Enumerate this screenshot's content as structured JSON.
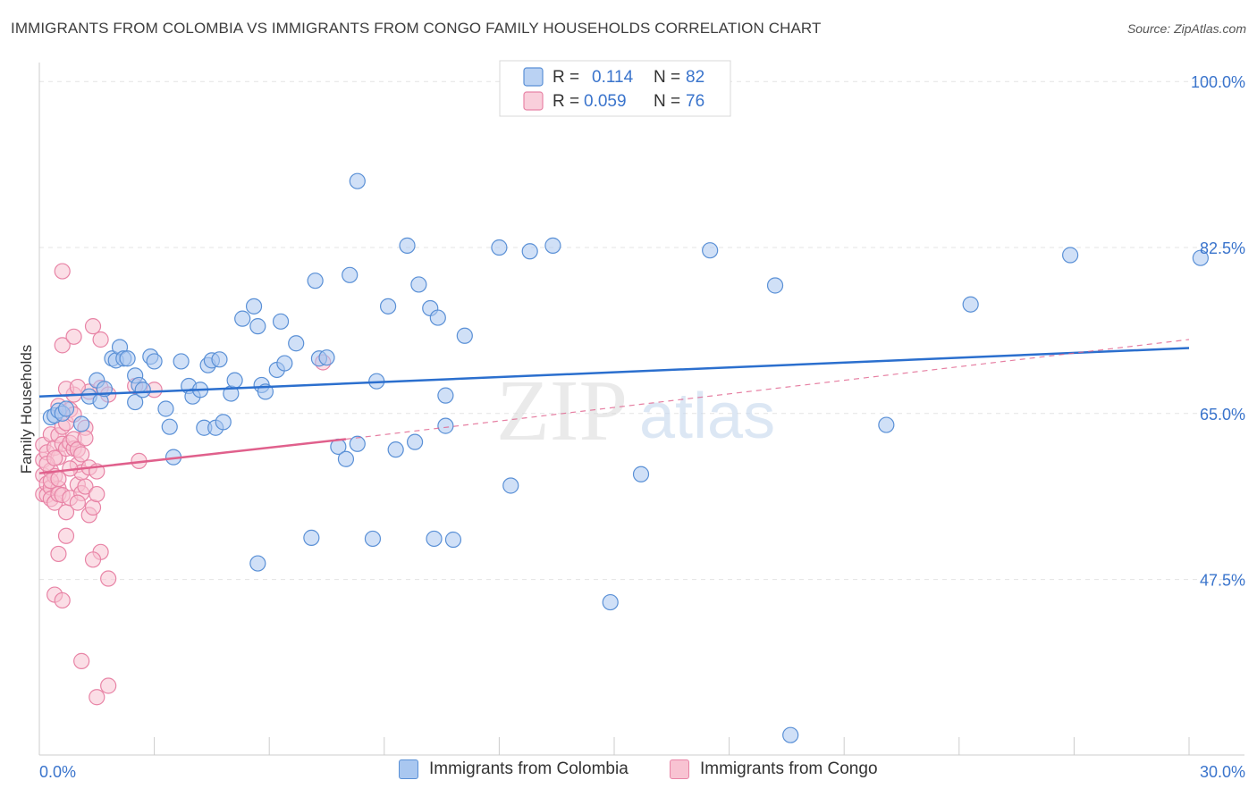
{
  "title": "IMMIGRANTS FROM COLOMBIA VS IMMIGRANTS FROM CONGO FAMILY HOUSEHOLDS CORRELATION CHART",
  "source": "Source: ZipAtlas.com",
  "watermark": {
    "zip": "ZIP",
    "atlas": "atlas"
  },
  "legend": {
    "rows": [
      {
        "r_label": "R =",
        "r_value": "0.114",
        "n_label": "N =",
        "n_value": "82"
      },
      {
        "r_label": "R =",
        "r_value": "0.059",
        "n_label": "N =",
        "n_value": "76"
      }
    ]
  },
  "bottom_legend": [
    {
      "label": "Immigrants from Colombia"
    },
    {
      "label": "Immigrants from Congo"
    }
  ],
  "colors": {
    "colombia_fill": "#a9c7f0",
    "colombia_stroke": "#5a90d6",
    "colombia_line": "#2b6fce",
    "congo_fill": "#f8c3d2",
    "congo_stroke": "#e884a6",
    "congo_line": "#e0608c",
    "value_text": "#3a74cc",
    "grid": "#e4e4e4",
    "axis": "#cccccc"
  },
  "chart_data": {
    "type": "scatter",
    "xlabel": "",
    "ylabel": "Family Households",
    "xlim": [
      0,
      30
    ],
    "ylim": [
      29,
      102
    ],
    "x_tick_labels": [
      "0.0%",
      "30.0%"
    ],
    "y_ticks": [
      47.5,
      65.0,
      82.5,
      100.0
    ],
    "y_tick_labels": [
      "47.5%",
      "65.0%",
      "82.5%",
      "100.0%"
    ],
    "series": [
      {
        "name": "Immigrants from Colombia",
        "trend": {
          "x": [
            0,
            30
          ],
          "y": [
            66.8,
            71.9
          ]
        },
        "points": [
          [
            0.3,
            64.6
          ],
          [
            0.4,
            64.8
          ],
          [
            0.5,
            65.3
          ],
          [
            0.6,
            65.0
          ],
          [
            0.7,
            65.5
          ],
          [
            1.1,
            63.9
          ],
          [
            1.3,
            66.8
          ],
          [
            1.5,
            68.5
          ],
          [
            1.6,
            66.3
          ],
          [
            1.7,
            67.6
          ],
          [
            1.9,
            70.8
          ],
          [
            2.0,
            70.6
          ],
          [
            2.1,
            72.0
          ],
          [
            2.2,
            70.8
          ],
          [
            2.3,
            70.8
          ],
          [
            2.5,
            69.0
          ],
          [
            2.5,
            66.2
          ],
          [
            2.6,
            68.0
          ],
          [
            2.7,
            67.5
          ],
          [
            2.9,
            71.0
          ],
          [
            3.0,
            70.5
          ],
          [
            3.3,
            65.5
          ],
          [
            3.4,
            63.6
          ],
          [
            3.5,
            60.4
          ],
          [
            3.7,
            70.5
          ],
          [
            3.9,
            67.9
          ],
          [
            4.0,
            66.8
          ],
          [
            4.2,
            67.5
          ],
          [
            4.3,
            63.5
          ],
          [
            4.4,
            70.1
          ],
          [
            4.5,
            70.6
          ],
          [
            4.6,
            63.5
          ],
          [
            4.7,
            70.7
          ],
          [
            4.8,
            64.1
          ],
          [
            5.0,
            67.1
          ],
          [
            5.1,
            68.5
          ],
          [
            5.3,
            75.0
          ],
          [
            5.6,
            76.3
          ],
          [
            5.7,
            74.2
          ],
          [
            5.8,
            68.0
          ],
          [
            5.9,
            67.3
          ],
          [
            6.2,
            69.6
          ],
          [
            6.3,
            74.7
          ],
          [
            6.4,
            70.3
          ],
          [
            6.7,
            72.4
          ],
          [
            7.2,
            79.0
          ],
          [
            7.3,
            70.8
          ],
          [
            7.5,
            70.9
          ],
          [
            7.8,
            61.5
          ],
          [
            8.0,
            60.2
          ],
          [
            8.1,
            79.6
          ],
          [
            8.3,
            61.8
          ],
          [
            8.3,
            89.5
          ],
          [
            8.8,
            68.4
          ],
          [
            9.1,
            76.3
          ],
          [
            9.3,
            61.2
          ],
          [
            9.6,
            82.7
          ],
          [
            9.8,
            62.0
          ],
          [
            9.9,
            78.6
          ],
          [
            10.2,
            76.1
          ],
          [
            10.4,
            75.1
          ],
          [
            10.6,
            63.7
          ],
          [
            10.6,
            66.9
          ],
          [
            11.1,
            73.2
          ],
          [
            12.0,
            82.5
          ],
          [
            12.3,
            57.4
          ],
          [
            12.8,
            82.1
          ],
          [
            13.4,
            82.7
          ],
          [
            14.9,
            45.1
          ],
          [
            15.7,
            58.6
          ],
          [
            17.5,
            82.2
          ],
          [
            19.2,
            78.5
          ],
          [
            22.1,
            63.8
          ],
          [
            24.3,
            76.5
          ],
          [
            26.9,
            81.7
          ],
          [
            30.3,
            81.4
          ],
          [
            7.1,
            51.9
          ],
          [
            8.7,
            51.8
          ],
          [
            10.3,
            51.8
          ],
          [
            10.8,
            51.7
          ],
          [
            5.7,
            49.2
          ],
          [
            19.6,
            31.1
          ]
        ]
      },
      {
        "name": "Immigrants from Congo",
        "trend": {
          "x": [
            0,
            8.0
          ],
          "y": [
            58.7,
            62.3
          ]
        },
        "trend_ext": {
          "x": [
            8.0,
            30
          ],
          "y": [
            62.3,
            72.8
          ]
        },
        "points": [
          [
            0.1,
            60.1
          ],
          [
            0.1,
            58.5
          ],
          [
            0.1,
            56.5
          ],
          [
            0.1,
            61.7
          ],
          [
            0.2,
            57.6
          ],
          [
            0.2,
            60.9
          ],
          [
            0.2,
            56.4
          ],
          [
            0.3,
            59.0
          ],
          [
            0.3,
            57.2
          ],
          [
            0.3,
            56.0
          ],
          [
            0.3,
            62.8
          ],
          [
            0.4,
            61.4
          ],
          [
            0.4,
            58.4
          ],
          [
            0.4,
            55.6
          ],
          [
            0.5,
            65.8
          ],
          [
            0.5,
            62.7
          ],
          [
            0.5,
            57.1
          ],
          [
            0.5,
            56.5
          ],
          [
            0.5,
            60.4
          ],
          [
            0.6,
            61.8
          ],
          [
            0.6,
            63.6
          ],
          [
            0.6,
            56.4
          ],
          [
            0.7,
            61.3
          ],
          [
            0.7,
            64.0
          ],
          [
            0.7,
            54.6
          ],
          [
            0.7,
            52.1
          ],
          [
            0.8,
            65.4
          ],
          [
            0.8,
            61.9
          ],
          [
            0.8,
            56.1
          ],
          [
            0.9,
            64.9
          ],
          [
            0.9,
            61.3
          ],
          [
            0.9,
            67.0
          ],
          [
            0.9,
            62.3
          ],
          [
            1.0,
            59.6
          ],
          [
            1.0,
            61.2
          ],
          [
            1.0,
            57.5
          ],
          [
            1.1,
            58.8
          ],
          [
            1.1,
            60.7
          ],
          [
            1.1,
            56.6
          ],
          [
            1.2,
            63.5
          ],
          [
            1.2,
            57.3
          ],
          [
            1.3,
            59.3
          ],
          [
            1.3,
            54.3
          ],
          [
            1.4,
            55.1
          ],
          [
            1.5,
            58.9
          ],
          [
            1.5,
            56.5
          ],
          [
            1.6,
            50.4
          ],
          [
            1.6,
            67.7
          ],
          [
            0.5,
            50.2
          ],
          [
            1.4,
            49.6
          ],
          [
            1.8,
            47.6
          ],
          [
            0.4,
            45.9
          ],
          [
            0.6,
            45.3
          ],
          [
            1.1,
            38.9
          ],
          [
            1.8,
            36.3
          ],
          [
            1.5,
            35.1
          ],
          [
            0.6,
            80.0
          ],
          [
            0.6,
            72.2
          ],
          [
            0.9,
            73.1
          ],
          [
            1.4,
            74.2
          ],
          [
            1.6,
            72.8
          ],
          [
            0.7,
            67.6
          ],
          [
            1.3,
            67.3
          ],
          [
            1.8,
            67.0
          ],
          [
            1.0,
            67.8
          ],
          [
            2.5,
            67.9
          ],
          [
            3.0,
            67.5
          ],
          [
            2.6,
            60.0
          ],
          [
            7.4,
            70.4
          ],
          [
            0.3,
            57.9
          ],
          [
            0.2,
            59.7
          ],
          [
            0.8,
            59.2
          ],
          [
            0.4,
            60.3
          ],
          [
            1.0,
            55.6
          ],
          [
            0.5,
            58.1
          ],
          [
            1.2,
            62.4
          ]
        ]
      }
    ]
  }
}
